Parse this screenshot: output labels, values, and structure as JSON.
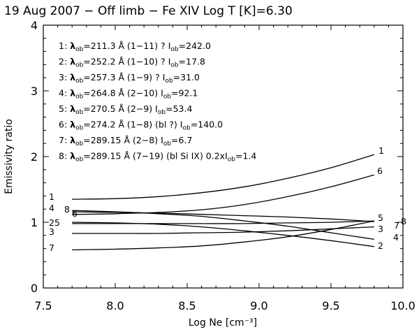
{
  "chart_data": {
    "type": "line",
    "title": "19 Aug 2007 − Off limb −  Fe XIV   Log T [K]=6.30",
    "xlabel": "Log Ne [cm⁻³]",
    "ylabel": "Emissivity ratio",
    "xlim": [
      7.5,
      10.0
    ],
    "ylim": [
      0,
      4
    ],
    "xticks": [
      "7.5",
      "8.0",
      "8.5",
      "9.0",
      "9.5",
      "10.0"
    ],
    "yticks": [
      "0",
      "1",
      "2",
      "3",
      "4"
    ],
    "x": [
      7.7,
      8.0,
      8.3,
      8.6,
      8.9,
      9.2,
      9.5,
      9.8
    ],
    "series": [
      {
        "name": "1",
        "end_label": "1",
        "start_label": "1",
        "values": [
          1.35,
          1.36,
          1.39,
          1.45,
          1.54,
          1.67,
          1.83,
          2.03
        ]
      },
      {
        "name": "2",
        "end_label": "2",
        "start_label": "2",
        "values": [
          1.0,
          0.99,
          0.97,
          0.93,
          0.87,
          0.8,
          0.72,
          0.63
        ]
      },
      {
        "name": "3",
        "end_label": "3",
        "start_label": "3",
        "values": [
          0.83,
          0.83,
          0.83,
          0.84,
          0.85,
          0.87,
          0.9,
          0.93
        ]
      },
      {
        "name": "4",
        "end_label": "4",
        "start_label": "4",
        "values": [
          1.18,
          1.16,
          1.13,
          1.09,
          1.02,
          0.94,
          0.84,
          0.74
        ]
      },
      {
        "name": "5",
        "end_label": "5",
        "start_label": "5",
        "values": [
          0.98,
          0.98,
          0.98,
          0.98,
          0.98,
          0.99,
          1.0,
          1.02
        ]
      },
      {
        "name": "6",
        "end_label": "6",
        "start_label": "6",
        "values": [
          1.12,
          1.13,
          1.15,
          1.19,
          1.27,
          1.39,
          1.54,
          1.72
        ]
      },
      {
        "name": "7",
        "end_label": "7",
        "start_label": "7",
        "values": [
          0.58,
          0.59,
          0.61,
          0.64,
          0.7,
          0.78,
          0.89,
          1.02
        ]
      },
      {
        "name": "8",
        "end_label": "8",
        "start_label": "8",
        "values": [
          1.16,
          1.15,
          1.14,
          1.12,
          1.1,
          1.08,
          1.05,
          1.01
        ]
      }
    ],
    "legend": [
      {
        "id": "1",
        "line": "λ",
        "text": "1: λob=211.3 Å (1−11) ? Iob=242.0"
      },
      {
        "id": "2",
        "text": "2: λob=252.2 Å (1−10) ? Iob=17.8"
      },
      {
        "id": "3",
        "text": "3: λob=257.3 Å (1−9) ? Iob=31.0"
      },
      {
        "id": "4",
        "text": "4: λob=264.8 Å (2−10)  Iob=92.1"
      },
      {
        "id": "5",
        "text": "5: λob=270.5 Å (2−9)  Iob=53.4"
      },
      {
        "id": "6",
        "text": "6: λob=274.2 Å (1−8) (bl ?) Iob=140.0"
      },
      {
        "id": "7",
        "text": "7: λob=289.15 Å (2−8)  Iob=6.7"
      },
      {
        "id": "8",
        "text": "8: λob=289.15 Å (7−19) (bl Si IX) 0.2xIob=1.4"
      }
    ],
    "start_labels_text": [
      "1",
      "4",
      "8",
      "6",
      "25",
      "3",
      "7"
    ],
    "end_labels_text": [
      "1",
      "6",
      "5",
      "3",
      "7",
      "8",
      "2",
      "4"
    ]
  }
}
